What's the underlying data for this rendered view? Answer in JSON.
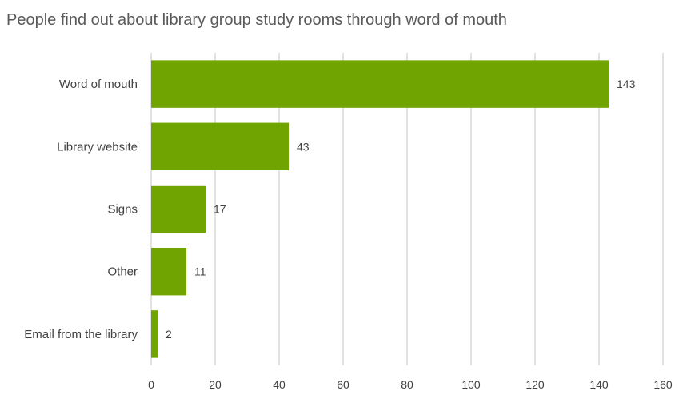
{
  "chart_data": {
    "type": "bar",
    "orientation": "horizontal",
    "title": "People find out about library group study rooms through word of mouth",
    "categories": [
      "Word of mouth",
      "Library website",
      "Signs",
      "Other",
      "Email from the library"
    ],
    "values": [
      143,
      43,
      17,
      11,
      2
    ],
    "xlim": [
      0,
      160
    ],
    "xticks": [
      0,
      20,
      40,
      60,
      80,
      100,
      120,
      140,
      160
    ],
    "grid": true,
    "legend": "none",
    "bar_color": "#70A400",
    "grid_color": "#D9D9D9"
  }
}
